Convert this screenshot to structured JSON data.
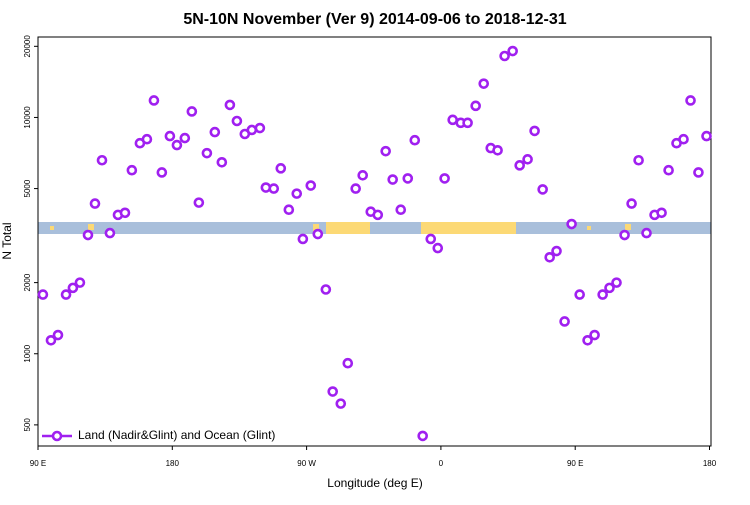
{
  "chart_data": {
    "type": "scatter",
    "title": "5N-10N November (Ver 9)   2014-09-06 to 2018-12-31",
    "xlabel": "Longitude (deg E)",
    "ylabel": "N Total",
    "log_y": true,
    "legend": "bottom-left",
    "xlim": [
      90,
      541
    ],
    "ylim": [
      407,
      21900
    ],
    "xticks": [
      {
        "value": 90,
        "label": "90 E"
      },
      180,
      {
        "value": 270,
        "label": "90 W"
      },
      {
        "value": 360,
        "label": "0"
      },
      {
        "value": 450,
        "label": "90 E"
      },
      {
        "value": 540,
        "label": "180"
      }
    ],
    "yticks": [
      500,
      1000,
      2000,
      5000,
      10000,
      20000
    ],
    "x": [
      93.3,
      98.7,
      103.4,
      108.8,
      113.4,
      118.1,
      123.5,
      128.2,
      132.9,
      138.2,
      143.6,
      148.3,
      152.9,
      158.3,
      163.0,
      167.7,
      173.0,
      178.4,
      183.1,
      188.4,
      193.1,
      197.8,
      203.2,
      208.5,
      213.2,
      218.6,
      223.3,
      228.6,
      233.3,
      238.7,
      242.7,
      248.0,
      252.7,
      258.1,
      263.4,
      267.5,
      272.8,
      277.5,
      282.9,
      287.5,
      292.9,
      297.6,
      302.9,
      307.6,
      313.0,
      317.7,
      323.0,
      327.7,
      333.1,
      337.8,
      342.5,
      347.8,
      353.2,
      357.9,
      362.5,
      367.9,
      373.3,
      377.9,
      383.3,
      388.7,
      393.4,
      398.0,
      402.7,
      408.1,
      412.8,
      418.1,
      422.8,
      428.2,
      432.9,
      437.5,
      442.9,
      447.6,
      453.0,
      458.3,
      463.0,
      468.4,
      473.0,
      477.7,
      483.1,
      487.8,
      492.5,
      497.8,
      503.2,
      507.9,
      512.6,
      517.9,
      522.6,
      527.3,
      532.6,
      538.0
    ],
    "series": [
      {
        "name": "Land (Nadir&Glint) and Ocean (Glint)",
        "color": "#a020f0",
        "values": [
          1780,
          1140,
          1200,
          1780,
          1900,
          2000,
          3180,
          4320,
          6590,
          3240,
          3870,
          3950,
          5980,
          7780,
          8090,
          11800,
          5850,
          8340,
          7640,
          8180,
          10600,
          4360,
          7060,
          8670,
          6460,
          11300,
          9660,
          8510,
          8850,
          9020,
          5050,
          5000,
          6090,
          4070,
          4760,
          3060,
          5150,
          3210,
          1870,
          692,
          615,
          912,
          5000,
          5690,
          3990,
          3870,
          7200,
          5460,
          4070,
          5520,
          8010,
          449,
          3060,
          2800,
          5520,
          9770,
          9490,
          9490,
          11200,
          13900,
          7420,
          7260,
          18200,
          19100,
          6270,
          6650,
          8770,
          4960,
          2560,
          2720,
          1370,
          3540,
          1780,
          1140,
          1200,
          1780,
          1900,
          2000,
          3180,
          4320,
          6590,
          3240,
          3870,
          3950,
          5980,
          7780,
          8090,
          11800,
          5850,
          8340
        ]
      }
    ]
  }
}
